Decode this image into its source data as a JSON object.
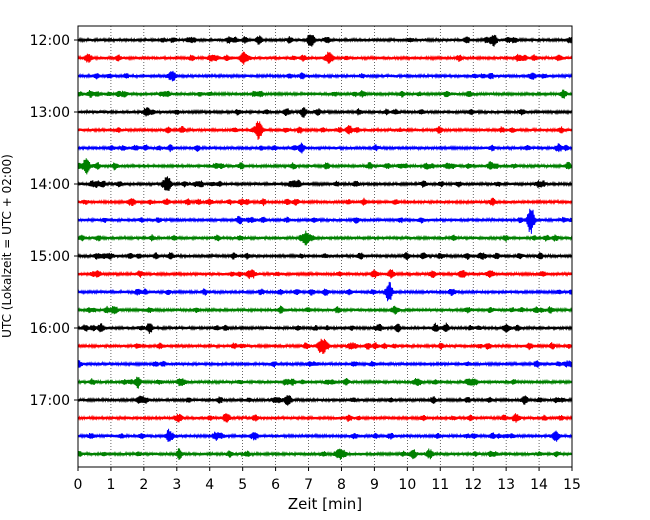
{
  "chart_data": {
    "type": "line",
    "title": "",
    "xlabel": "Zeit  [min]",
    "ylabel": "UTC (Lokalzeit = UTC + 02:00)",
    "xlim": [
      0,
      15
    ],
    "xticks": [
      0,
      1,
      2,
      3,
      4,
      5,
      6,
      7,
      8,
      9,
      10,
      11,
      12,
      13,
      14,
      15
    ],
    "y_tick_labels": [
      "12:00",
      "13:00",
      "14:00",
      "15:00",
      "16:00",
      "17:00"
    ],
    "grid": "vertical dotted",
    "trace_count": 24,
    "trace_interval_min": 15,
    "trace_colors": [
      "#000000",
      "#ff0000",
      "#0000ff",
      "#008000"
    ],
    "events": [
      {
        "trace": 0,
        "t": 12.6,
        "amp": 0.5
      },
      {
        "trace": 0,
        "t": 7.1,
        "amp": 0.35
      },
      {
        "trace": 1,
        "t": 7.6,
        "amp": 0.55
      },
      {
        "trace": 1,
        "t": 5.1,
        "amp": 0.4
      },
      {
        "trace": 5,
        "t": 5.5,
        "amp": 0.9
      },
      {
        "trace": 6,
        "t": 14.6,
        "amp": 0.4
      },
      {
        "trace": 7,
        "t": 0.25,
        "amp": 0.95
      },
      {
        "trace": 8,
        "t": 2.7,
        "amp": 0.4
      },
      {
        "trace": 10,
        "t": 13.75,
        "amp": 1.6
      },
      {
        "trace": 10,
        "t": 4.9,
        "amp": 0.35
      },
      {
        "trace": 13,
        "t": 5.2,
        "amp": 0.4
      },
      {
        "trace": 13,
        "t": 9.0,
        "amp": 0.4
      },
      {
        "trace": 14,
        "t": 9.45,
        "amp": 0.95
      },
      {
        "trace": 15,
        "t": 1.1,
        "amp": 0.45
      },
      {
        "trace": 16,
        "t": 0.7,
        "amp": 0.4
      },
      {
        "trace": 16,
        "t": 13.0,
        "amp": 0.4
      },
      {
        "trace": 17,
        "t": 7.4,
        "amp": 0.7
      },
      {
        "trace": 20,
        "t": 6.4,
        "amp": 0.35
      },
      {
        "trace": 22,
        "t": 14.5,
        "amp": 0.45
      }
    ]
  }
}
